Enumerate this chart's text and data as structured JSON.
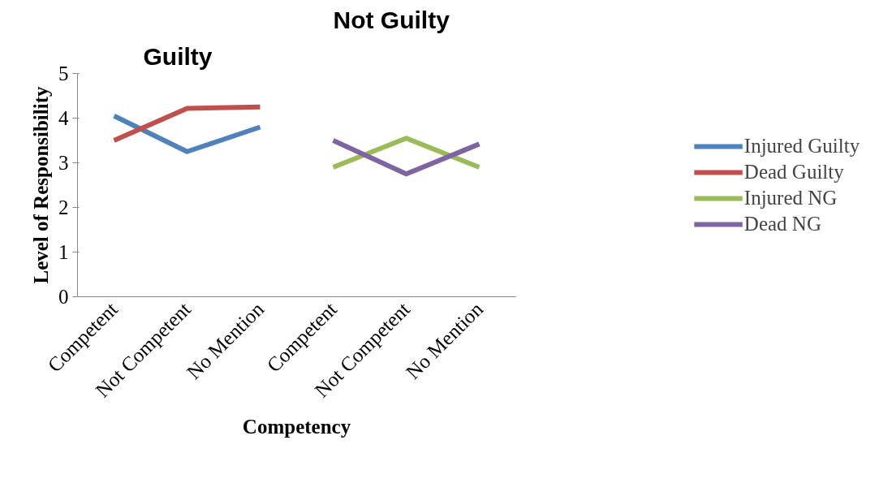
{
  "chart_data": {
    "type": "line",
    "xlabel": "Competency",
    "ylabel": "Level of Responsibility",
    "categories": [
      "Competent",
      "Not Competent",
      "No Mention",
      "Competent",
      "Not Competent",
      "No Mention"
    ],
    "series": [
      {
        "name": "Injured Guilty",
        "color": "#4f81bd",
        "values": [
          4.05,
          3.25,
          3.8,
          null,
          null,
          null
        ]
      },
      {
        "name": "Dead Guilty",
        "color": "#c0504d",
        "values": [
          3.5,
          4.22,
          4.25,
          null,
          null,
          null
        ]
      },
      {
        "name": "Injured NG",
        "color": "#9bbb59",
        "values": [
          null,
          null,
          null,
          2.9,
          3.55,
          2.9
        ]
      },
      {
        "name": "Dead NG",
        "color": "#8064a2",
        "values": [
          null,
          null,
          null,
          3.5,
          2.75,
          3.42
        ]
      }
    ],
    "annotations": [
      "Guilty",
      "Not Guilty"
    ],
    "ylim": [
      0,
      5
    ],
    "yticks": [
      0,
      1,
      2,
      3,
      4,
      5
    ],
    "grid": false,
    "legend": "right",
    "marker": "none",
    "line_style": "solid"
  }
}
